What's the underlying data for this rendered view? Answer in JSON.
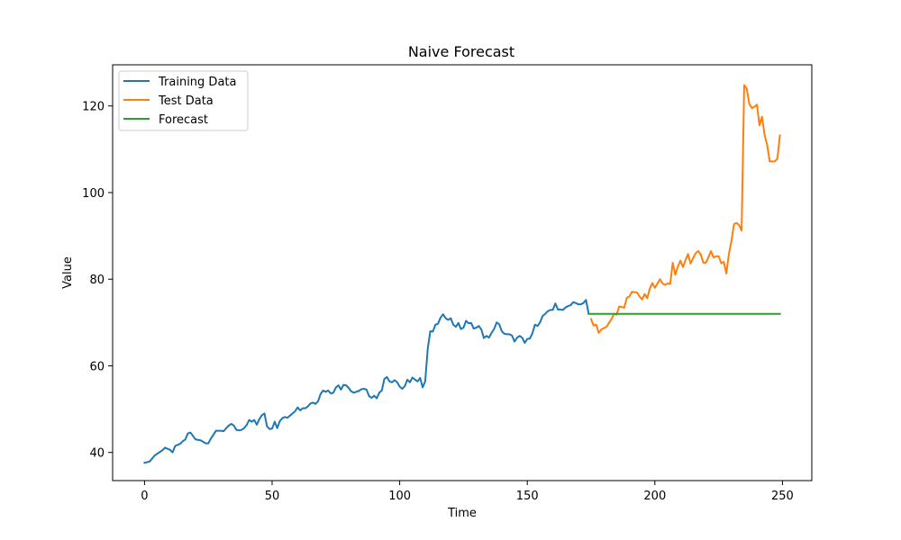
{
  "chart_data": {
    "type": "line",
    "title": "Naive Forecast",
    "xlabel": "Time",
    "ylabel": "Value",
    "xlim": [
      -12.5,
      261.5
    ],
    "ylim": [
      33.5,
      129.5
    ],
    "xticks": [
      0,
      50,
      100,
      150,
      200,
      250
    ],
    "yticks": [
      40,
      60,
      80,
      100,
      120
    ],
    "grid": false,
    "legend_position": "top-left",
    "series": [
      {
        "name": "Training Data",
        "color": "#1f77b4",
        "points": [
          [
            0,
            37.6
          ],
          [
            2,
            37.9
          ],
          [
            4,
            39.3
          ],
          [
            6,
            40.1
          ],
          [
            7,
            40.5
          ],
          [
            8,
            41.1
          ],
          [
            10,
            40.6
          ],
          [
            11,
            40.0
          ],
          [
            12,
            41.5
          ],
          [
            14,
            42.0
          ],
          [
            15,
            42.6
          ],
          [
            16,
            43.0
          ],
          [
            17,
            44.4
          ],
          [
            18,
            44.6
          ],
          [
            20,
            43.0
          ],
          [
            22,
            42.8
          ],
          [
            24,
            42.1
          ],
          [
            25,
            42.1
          ],
          [
            26,
            43.2
          ],
          [
            28,
            45.0
          ],
          [
            30,
            45.0
          ],
          [
            31,
            44.9
          ],
          [
            32,
            45.6
          ],
          [
            33,
            46.2
          ],
          [
            34,
            46.6
          ],
          [
            35,
            46.2
          ],
          [
            36,
            45.2
          ],
          [
            37,
            45.1
          ],
          [
            38,
            45.2
          ],
          [
            39,
            45.6
          ],
          [
            40,
            46.3
          ],
          [
            41,
            47.5
          ],
          [
            42,
            47.1
          ],
          [
            43,
            47.5
          ],
          [
            44,
            46.4
          ],
          [
            45,
            47.7
          ],
          [
            46,
            48.6
          ],
          [
            47,
            49.0
          ],
          [
            48,
            46.0
          ],
          [
            49,
            45.4
          ],
          [
            50,
            45.5
          ],
          [
            51,
            47.1
          ],
          [
            52,
            45.6
          ],
          [
            53,
            47.2
          ],
          [
            54,
            47.9
          ],
          [
            55,
            48.2
          ],
          [
            56,
            48.0
          ],
          [
            57,
            48.5
          ],
          [
            58,
            49.0
          ],
          [
            59,
            49.5
          ],
          [
            60,
            50.4
          ],
          [
            61,
            49.7
          ],
          [
            62,
            50.2
          ],
          [
            63,
            50.2
          ],
          [
            64,
            50.6
          ],
          [
            65,
            51.3
          ],
          [
            66,
            51.5
          ],
          [
            67,
            51.2
          ],
          [
            68,
            51.8
          ],
          [
            69,
            53.5
          ],
          [
            70,
            54.3
          ],
          [
            71,
            54.0
          ],
          [
            72,
            54.3
          ],
          [
            73,
            53.6
          ],
          [
            74,
            53.8
          ],
          [
            75,
            55.0
          ],
          [
            76,
            55.5
          ],
          [
            77,
            54.5
          ],
          [
            78,
            55.6
          ],
          [
            79,
            55.5
          ],
          [
            80,
            54.9
          ],
          [
            81,
            54.1
          ],
          [
            82,
            53.8
          ],
          [
            83,
            54.0
          ],
          [
            84,
            54.2
          ],
          [
            85,
            54.6
          ],
          [
            86,
            54.7
          ],
          [
            87,
            54.5
          ],
          [
            88,
            53.0
          ],
          [
            89,
            52.6
          ],
          [
            90,
            53.1
          ],
          [
            91,
            52.5
          ],
          [
            92,
            53.8
          ],
          [
            93,
            54.3
          ],
          [
            94,
            57.0
          ],
          [
            95,
            57.4
          ],
          [
            96,
            56.4
          ],
          [
            97,
            56.2
          ],
          [
            98,
            56.7
          ],
          [
            99,
            56.2
          ],
          [
            100,
            55.2
          ],
          [
            101,
            54.7
          ],
          [
            102,
            55.3
          ],
          [
            103,
            56.8
          ],
          [
            104,
            56.2
          ],
          [
            105,
            57.3
          ],
          [
            106,
            56.8
          ],
          [
            107,
            56.4
          ],
          [
            108,
            57.2
          ],
          [
            109,
            55.0
          ],
          [
            110,
            56.4
          ],
          [
            111,
            64.0
          ],
          [
            112,
            68.0
          ],
          [
            113,
            67.9
          ],
          [
            114,
            69.5
          ],
          [
            115,
            69.7
          ],
          [
            116,
            71.1
          ],
          [
            117,
            71.9
          ],
          [
            118,
            71.0
          ],
          [
            119,
            70.6
          ],
          [
            120,
            71.0
          ],
          [
            121,
            69.5
          ],
          [
            122,
            69.0
          ],
          [
            123,
            69.9
          ],
          [
            124,
            68.5
          ],
          [
            125,
            68.8
          ],
          [
            126,
            70.4
          ],
          [
            127,
            69.8
          ],
          [
            128,
            69.9
          ],
          [
            129,
            68.6
          ],
          [
            130,
            68.8
          ],
          [
            131,
            69.2
          ],
          [
            132,
            68.4
          ],
          [
            133,
            66.4
          ],
          [
            134,
            66.9
          ],
          [
            135,
            66.5
          ],
          [
            136,
            67.6
          ],
          [
            137,
            68.5
          ],
          [
            138,
            70.0
          ],
          [
            139,
            69.6
          ],
          [
            140,
            68.0
          ],
          [
            141,
            67.4
          ],
          [
            142,
            67.3
          ],
          [
            143,
            67.3
          ],
          [
            144,
            67.0
          ],
          [
            145,
            65.6
          ],
          [
            146,
            66.5
          ],
          [
            147,
            66.9
          ],
          [
            148,
            66.5
          ],
          [
            149,
            65.3
          ],
          [
            150,
            66.2
          ],
          [
            151,
            66.3
          ],
          [
            152,
            67.5
          ],
          [
            153,
            69.5
          ],
          [
            154,
            69.2
          ],
          [
            155,
            70.0
          ],
          [
            156,
            71.5
          ],
          [
            157,
            72.0
          ],
          [
            158,
            72.6
          ],
          [
            159,
            72.9
          ],
          [
            160,
            72.9
          ],
          [
            161,
            74.4
          ],
          [
            162,
            73.0
          ],
          [
            163,
            73.0
          ],
          [
            164,
            72.9
          ],
          [
            165,
            73.5
          ],
          [
            166,
            73.8
          ],
          [
            167,
            74.0
          ],
          [
            168,
            74.7
          ],
          [
            169,
            74.5
          ],
          [
            170,
            74.2
          ],
          [
            171,
            74.2
          ],
          [
            172,
            74.5
          ],
          [
            173,
            75.2
          ],
          [
            174,
            72.2
          ]
        ]
      },
      {
        "name": "Test Data",
        "color": "#ff7f0e",
        "points": [
          [
            175,
            70.8
          ],
          [
            176,
            69.3
          ],
          [
            177,
            69.5
          ],
          [
            178,
            67.6
          ],
          [
            179,
            68.4
          ],
          [
            180,
            68.7
          ],
          [
            181,
            69.0
          ],
          [
            182,
            69.9
          ],
          [
            183,
            70.8
          ],
          [
            184,
            72.0
          ],
          [
            185,
            71.8
          ],
          [
            186,
            73.7
          ],
          [
            187,
            73.6
          ],
          [
            188,
            73.4
          ],
          [
            189,
            75.7
          ],
          [
            190,
            76.0
          ],
          [
            191,
            77.1
          ],
          [
            192,
            77.0
          ],
          [
            193,
            76.9
          ],
          [
            194,
            76.0
          ],
          [
            195,
            75.3
          ],
          [
            196,
            76.6
          ],
          [
            197,
            75.6
          ],
          [
            198,
            77.8
          ],
          [
            199,
            79.1
          ],
          [
            200,
            78.0
          ],
          [
            201,
            79.0
          ],
          [
            202,
            80.0
          ],
          [
            203,
            79.0
          ],
          [
            204,
            78.7
          ],
          [
            205,
            79.0
          ],
          [
            206,
            78.9
          ],
          [
            207,
            83.8
          ],
          [
            208,
            81.0
          ],
          [
            209,
            82.9
          ],
          [
            210,
            84.3
          ],
          [
            211,
            82.8
          ],
          [
            212,
            84.4
          ],
          [
            213,
            85.8
          ],
          [
            214,
            83.6
          ],
          [
            215,
            84.9
          ],
          [
            216,
            86.0
          ],
          [
            217,
            86.5
          ],
          [
            218,
            85.7
          ],
          [
            219,
            83.8
          ],
          [
            220,
            83.8
          ],
          [
            221,
            85.1
          ],
          [
            222,
            86.5
          ],
          [
            223,
            85.0
          ],
          [
            224,
            85.3
          ],
          [
            225,
            85.3
          ],
          [
            226,
            83.7
          ],
          [
            227,
            84.0
          ],
          [
            228,
            81.3
          ],
          [
            229,
            85.8
          ],
          [
            230,
            88.8
          ],
          [
            231,
            92.7
          ],
          [
            232,
            93.0
          ],
          [
            233,
            92.5
          ],
          [
            234,
            91.2
          ],
          [
            235,
            124.8
          ],
          [
            236,
            124.0
          ],
          [
            237,
            120.5
          ],
          [
            238,
            119.5
          ],
          [
            239,
            119.8
          ],
          [
            240,
            120.3
          ],
          [
            241,
            115.5
          ],
          [
            242,
            117.5
          ],
          [
            243,
            113.3
          ],
          [
            244,
            111.0
          ],
          [
            245,
            107.2
          ],
          [
            246,
            107.2
          ],
          [
            247,
            107.2
          ],
          [
            248,
            107.8
          ],
          [
            249,
            113.2
          ]
        ]
      },
      {
        "name": "Forecast",
        "color": "#2ca02c",
        "points": [
          [
            174,
            72.0
          ],
          [
            249,
            72.0
          ]
        ]
      }
    ]
  }
}
